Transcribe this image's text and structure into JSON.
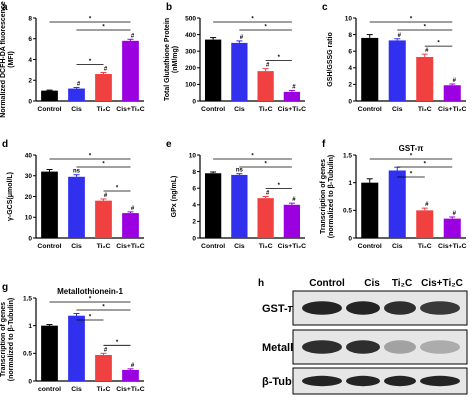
{
  "colors": {
    "control": "#000000",
    "cis": "#3030ee",
    "ti2c": "#f04040",
    "cis_ti2c": "#9b00e0"
  },
  "chart_data": [
    {
      "panel": "a",
      "type": "bar",
      "categories": [
        "Control",
        "Cis",
        "Ti₂C",
        "Cis+Ti₂C"
      ],
      "values": [
        1.0,
        1.2,
        2.6,
        5.8
      ],
      "errors": [
        0.05,
        0.1,
        0.15,
        0.15
      ],
      "ylabel": "Normalized DCFH-DA fluorescence (MFI)",
      "ylim": [
        0,
        8
      ],
      "yticks": [
        0,
        2,
        4,
        6,
        8
      ],
      "title": "",
      "marks": [
        "",
        "#",
        "#",
        "#"
      ],
      "brackets": [
        {
          "from": 0,
          "to": 3,
          "label": "*"
        },
        {
          "from": 1,
          "to": 3,
          "label": "*"
        },
        {
          "from": 1,
          "to": 2,
          "label": "*"
        }
      ]
    },
    {
      "panel": "b",
      "type": "bar",
      "categories": [
        "Control",
        "Cis",
        "Ti₂C",
        "Cis+Ti₂C"
      ],
      "values": [
        370,
        350,
        180,
        55
      ],
      "errors": [
        12,
        12,
        15,
        8
      ],
      "ylabel": "Total Glutathione Protein (nM/mg)",
      "ylim": [
        0,
        500
      ],
      "yticks": [
        0,
        100,
        200,
        300,
        400,
        500
      ],
      "title": "",
      "marks": [
        "",
        "#",
        "#",
        "#"
      ],
      "brackets": [
        {
          "from": 0,
          "to": 3,
          "label": "*"
        },
        {
          "from": 1,
          "to": 3,
          "label": "*"
        },
        {
          "from": 2,
          "to": 3,
          "label": "*"
        }
      ]
    },
    {
      "panel": "c",
      "type": "bar",
      "categories": [
        "Control",
        "Cis",
        "Ti₂C",
        "Cis+Ti₂C"
      ],
      "values": [
        7.6,
        7.3,
        5.3,
        1.9
      ],
      "errors": [
        0.4,
        0.2,
        0.35,
        0.15
      ],
      "ylabel": "GSH/GSSG ratio",
      "ylim": [
        0,
        10
      ],
      "yticks": [
        0,
        2,
        4,
        6,
        8,
        10
      ],
      "title": "",
      "marks": [
        "",
        "#",
        "#",
        "#"
      ],
      "brackets": [
        {
          "from": 0,
          "to": 3,
          "label": "*"
        },
        {
          "from": 1,
          "to": 3,
          "label": "*"
        },
        {
          "from": 2,
          "to": 3,
          "label": "*"
        }
      ]
    },
    {
      "panel": "d",
      "type": "bar",
      "categories": [
        "Control",
        "Cis",
        "Ti₂C",
        "Cis+Ti₂C"
      ],
      "values": [
        32,
        29.5,
        18,
        12
      ],
      "errors": [
        1.0,
        1.0,
        0.8,
        0.6
      ],
      "ylabel": "γ-GCS(μmol/L)",
      "ylim": [
        0,
        40
      ],
      "yticks": [
        0,
        10,
        20,
        30,
        40
      ],
      "title": "",
      "marks": [
        "",
        "ns",
        "#",
        "#"
      ],
      "brackets": [
        {
          "from": 0,
          "to": 3,
          "label": "*"
        },
        {
          "from": 1,
          "to": 3,
          "label": "*"
        },
        {
          "from": 2,
          "to": 3,
          "label": "*"
        }
      ]
    },
    {
      "panel": "e",
      "type": "bar",
      "categories": [
        "Control",
        "Cis",
        "Ti₂C",
        "Cis+Ti₂C"
      ],
      "values": [
        7.8,
        7.6,
        4.8,
        4.0
      ],
      "errors": [
        0.15,
        0.15,
        0.2,
        0.2
      ],
      "ylabel": "GPx (ng/mL)",
      "ylim": [
        0,
        10
      ],
      "yticks": [
        0,
        2,
        4,
        6,
        8,
        10
      ],
      "title": "",
      "marks": [
        "",
        "ns",
        "#",
        "#"
      ],
      "brackets": [
        {
          "from": 0,
          "to": 3,
          "label": "*"
        },
        {
          "from": 1,
          "to": 3,
          "label": "*"
        },
        {
          "from": 2,
          "to": 3,
          "label": "*"
        }
      ]
    },
    {
      "panel": "f",
      "type": "bar",
      "categories": [
        "Control",
        "Cis",
        "Ti₂C",
        "Cis+Ti₂C"
      ],
      "values": [
        1.0,
        1.22,
        0.5,
        0.35
      ],
      "errors": [
        0.07,
        0.06,
        0.04,
        0.03
      ],
      "ylabel": "Transcription of genes (normalized to β-Tubulin)",
      "ylim": [
        0,
        1.5
      ],
      "yticks": [
        0,
        0.5,
        1.0,
        1.5
      ],
      "title": "GST-π",
      "marks": [
        "",
        "",
        "#",
        "#"
      ],
      "brackets": [
        {
          "from": 0,
          "to": 3,
          "label": "*"
        },
        {
          "from": 1,
          "to": 3,
          "label": "*"
        },
        {
          "from": 1,
          "to": 2,
          "label": "*"
        }
      ]
    },
    {
      "panel": "g",
      "type": "bar",
      "categories": [
        "control",
        "Cis",
        "Ti₂C",
        "Cis+Ti₂C"
      ],
      "values": [
        1.0,
        1.18,
        0.47,
        0.2
      ],
      "errors": [
        0.02,
        0.04,
        0.03,
        0.02
      ],
      "ylabel": "Transcription of genes (normalized to β-Tubulin)",
      "ylim": [
        0,
        1.5
      ],
      "yticks": [
        0,
        0.5,
        1.0,
        1.5
      ],
      "title": "Metallothionein-1",
      "marks": [
        "",
        "",
        "#",
        "#"
      ],
      "brackets": [
        {
          "from": 0,
          "to": 3,
          "label": "*"
        },
        {
          "from": 1,
          "to": 3,
          "label": "*"
        },
        {
          "from": 1,
          "to": 2,
          "label": "*"
        },
        {
          "from": 2,
          "to": 3,
          "label": "*"
        }
      ]
    }
  ],
  "blot": {
    "panel": "h",
    "columns": [
      "Control",
      "Cis",
      "Ti₂C",
      "Cis+Ti₂C"
    ],
    "rows": [
      "GST-π",
      "Metallothionein",
      "β-Tubulin"
    ],
    "intensities": [
      [
        0.95,
        0.95,
        0.9,
        0.85
      ],
      [
        0.9,
        0.9,
        0.35,
        0.3
      ],
      [
        0.95,
        0.95,
        0.95,
        0.95
      ]
    ]
  }
}
